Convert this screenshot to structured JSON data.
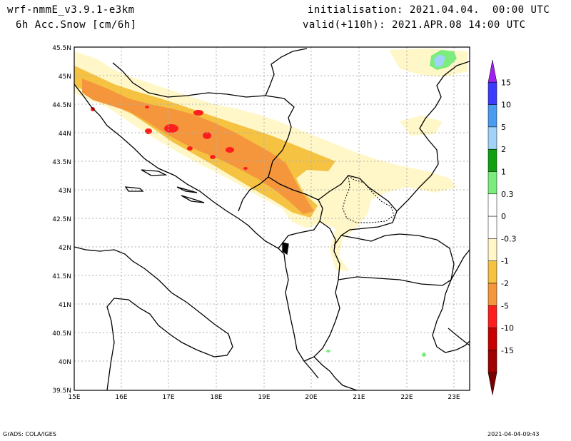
{
  "header": {
    "model": "wrf-nmmE_v3.9.1-e3km",
    "variable": "6h Acc.Snow [cm/6h]",
    "initialisation": "initialisation: 2021.04.04.  00:00 UTC",
    "valid": "valid(+110h): 2021.APR.08 14:00 UTC"
  },
  "map": {
    "lat_labels": [
      "45.5N",
      "45N",
      "44.5N",
      "44N",
      "43.5N",
      "43N",
      "42.5N",
      "42N",
      "41.5N",
      "41N",
      "40.5N",
      "40N",
      "39.5N"
    ],
    "lon_labels": [
      "15E",
      "16E",
      "17E",
      "18E",
      "19E",
      "20E",
      "21E",
      "22E",
      "23E"
    ],
    "grid": true
  },
  "legend": {
    "levels": [
      "15",
      "10",
      "5",
      "2",
      "1",
      "0.3",
      "0",
      "-0.3",
      "-1",
      "-2",
      "-5",
      "-10",
      "-15"
    ],
    "colors": [
      "#a020f0",
      "#3c3cff",
      "#4a9cf0",
      "#a0d2fa",
      "#11a011",
      "#7ced7c",
      "#ffffff",
      "#ffffff",
      "#fff7c8",
      "#f5c242",
      "#f5963c",
      "#ff1e1e",
      "#c80000",
      "#a00000",
      "#7a0000"
    ]
  },
  "footer": {
    "credit": "GrADS: COLA/IGES",
    "timestamp": "2021-04-04-09:43"
  }
}
